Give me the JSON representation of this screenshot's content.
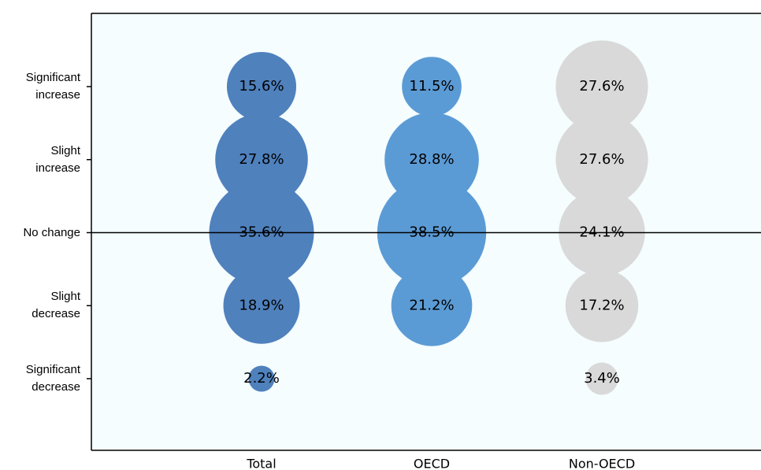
{
  "chart_data": {
    "type": "bubble",
    "categories": [
      "Total",
      "OECD",
      "Non-OECD"
    ],
    "y_categories": [
      "Significant increase",
      "Slight increase",
      "No change",
      "Slight decrease",
      "Significant decrease"
    ],
    "series": [
      {
        "name": "Total",
        "color": "#4f81bd",
        "values": [
          15.6,
          27.8,
          35.6,
          18.9,
          2.2
        ],
        "value_labels": [
          "15.6%",
          "27.8%",
          "35.6%",
          "18.9%",
          "2.2%"
        ]
      },
      {
        "name": "OECD",
        "color": "#5b9bd5",
        "values": [
          11.5,
          28.8,
          38.5,
          21.2,
          null
        ],
        "value_labels": [
          "11.5%",
          "28.8%",
          "38.5%",
          "21.2%",
          null
        ]
      },
      {
        "name": "Non-OECD",
        "color": "#d9d9d9",
        "values": [
          27.6,
          27.6,
          24.1,
          17.2,
          3.4
        ],
        "value_labels": [
          "27.6%",
          "27.6%",
          "24.1%",
          "17.2%",
          "3.4%"
        ]
      }
    ]
  }
}
